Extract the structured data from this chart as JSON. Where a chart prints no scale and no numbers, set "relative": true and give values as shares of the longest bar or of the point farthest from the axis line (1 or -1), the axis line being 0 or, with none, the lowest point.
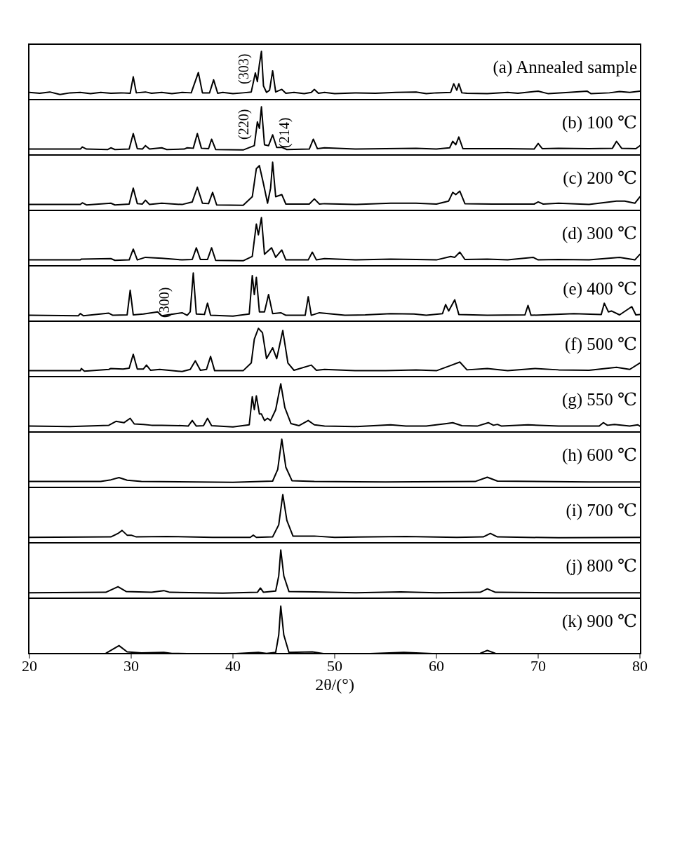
{
  "chart_data": [
    {
      "type": "line",
      "title": "(a) Annealed sample",
      "relative": true,
      "color": "#000000",
      "xlim": [
        20,
        80
      ],
      "tick_labels": false,
      "annotations": [
        {
          "text": "(303)",
          "x": 42.8,
          "y": 1
        }
      ],
      "x": [
        20,
        21,
        22,
        23,
        24,
        25,
        26,
        27,
        28,
        29,
        29.9,
        30.2,
        30.5,
        31.4,
        32,
        33,
        34,
        35,
        35.9,
        36.6,
        37,
        37.7,
        38.1,
        38.5,
        39,
        40,
        41,
        41.8,
        42.2,
        42.4,
        42.6,
        42.8,
        43,
        43.3,
        43.6,
        43.9,
        44.2,
        44.8,
        45.2,
        46,
        47,
        47.7,
        48,
        48.4,
        49,
        50,
        52,
        54,
        56,
        58,
        59,
        60,
        61.4,
        61.7,
        62,
        62.2,
        62.5,
        63,
        65,
        67,
        68,
        70,
        71,
        73,
        74.8,
        75.2,
        77,
        78,
        79,
        80
      ],
      "values": [
        0.05,
        0.03,
        0.06,
        0,
        0.04,
        0.05,
        0.02,
        0.05,
        0.03,
        0.04,
        0.03,
        0.41,
        0.04,
        0.06,
        0.03,
        0.05,
        0.02,
        0.05,
        0.04,
        0.51,
        0.04,
        0.04,
        0.34,
        0.03,
        0.05,
        0.02,
        0.04,
        0.06,
        0.5,
        0.3,
        0.7,
        1,
        0.2,
        0.05,
        0.1,
        0.55,
        0.06,
        0.12,
        0.03,
        0.05,
        0.02,
        0.05,
        0.12,
        0.03,
        0.05,
        0.02,
        0.04,
        0.03,
        0.05,
        0.06,
        0.02,
        0.04,
        0.05,
        0.25,
        0.1,
        0.25,
        0.04,
        0.03,
        0.02,
        0.05,
        0.03,
        0.08,
        0.02,
        0.05,
        0.08,
        0.02,
        0.04,
        0.07,
        0.05,
        0.08
      ]
    },
    {
      "type": "line",
      "title": "(b) 100 ℃",
      "relative": true,
      "color": "#000000",
      "xlim": [
        20,
        80
      ],
      "tick_labels": false,
      "annotations": [
        {
          "text": "(220)",
          "x": 42.8,
          "y": 1
        },
        {
          "text": "(214)",
          "x": 43.9,
          "y": 0.35
        }
      ],
      "x": [
        20,
        25,
        25.2,
        25.6,
        27.7,
        28,
        28.4,
        29.8,
        30.2,
        30.6,
        31.1,
        31.4,
        31.8,
        33,
        33.5,
        35.2,
        35.5,
        36.1,
        36.5,
        36.9,
        37.6,
        37.9,
        38.3,
        41,
        42.1,
        42.4,
        42.6,
        42.8,
        43.1,
        43.5,
        43.9,
        44.3,
        44.8,
        45.3,
        47.5,
        47.9,
        48.3,
        49,
        52,
        55,
        58,
        60,
        61.3,
        61.6,
        61.9,
        62.2,
        62.6,
        67,
        69.6,
        70,
        70.4,
        72,
        75,
        77.3,
        77.7,
        78.2,
        79.6,
        80
      ],
      "values": [
        0.02,
        0.02,
        0.07,
        0.02,
        0.01,
        0.05,
        0.01,
        0.02,
        0.38,
        0.03,
        0.02,
        0.1,
        0.02,
        0.05,
        0.01,
        0.02,
        0.05,
        0.04,
        0.38,
        0.04,
        0.03,
        0.25,
        0.01,
        0,
        0.1,
        0.65,
        0.5,
        1,
        0.12,
        0.1,
        0.35,
        0.06,
        0.06,
        0.01,
        0.02,
        0.25,
        0.03,
        0.05,
        0.02,
        0.03,
        0.04,
        0.02,
        0.05,
        0.2,
        0.12,
        0.3,
        0.03,
        0.03,
        0.02,
        0.15,
        0.03,
        0.04,
        0.03,
        0.04,
        0.2,
        0.04,
        0.03,
        0.1
      ]
    },
    {
      "type": "line",
      "title": "(c) 200 ℃",
      "relative": true,
      "color": "#000000",
      "xlim": [
        20,
        80
      ],
      "tick_labels": false,
      "x": [
        20,
        25,
        25.2,
        25.6,
        28,
        28.4,
        29.8,
        30.2,
        30.6,
        31.1,
        31.4,
        31.8,
        33,
        35,
        36,
        36.5,
        37,
        37.6,
        38,
        38.4,
        41,
        41.9,
        42.3,
        42.6,
        43,
        43.4,
        43.7,
        43.9,
        44.2,
        44.8,
        45.2,
        47.5,
        48,
        48.5,
        49,
        52,
        55.5,
        58,
        60,
        61.2,
        61.6,
        61.9,
        62.3,
        62.8,
        65.5,
        69.6,
        70,
        70.5,
        72,
        75,
        77.7,
        78.5,
        79.5,
        80
      ],
      "values": [
        0.02,
        0.02,
        0.06,
        0.01,
        0.05,
        0.01,
        0.03,
        0.4,
        0.04,
        0.03,
        0.12,
        0.02,
        0.05,
        0.02,
        0.08,
        0.42,
        0.05,
        0.04,
        0.3,
        0.01,
        0,
        0.2,
        0.85,
        0.92,
        0.5,
        0.05,
        0.4,
        1,
        0.2,
        0.25,
        0.03,
        0.03,
        0.15,
        0.03,
        0.04,
        0.02,
        0.05,
        0.05,
        0.03,
        0.1,
        0.3,
        0.25,
        0.33,
        0.04,
        0.03,
        0.03,
        0.08,
        0.03,
        0.05,
        0.02,
        0.1,
        0.1,
        0.05,
        0.2
      ]
    },
    {
      "type": "line",
      "title": "(d) 300 ℃",
      "relative": true,
      "color": "#000000",
      "xlim": [
        20,
        80
      ],
      "tick_labels": false,
      "x": [
        20,
        25,
        25.1,
        28,
        28.4,
        29.8,
        30.2,
        30.6,
        31.4,
        33,
        35,
        36,
        36.4,
        36.8,
        37.5,
        37.9,
        38.3,
        41,
        41.9,
        42.3,
        42.5,
        42.8,
        43.1,
        43.8,
        44.2,
        44.8,
        45.2,
        47.4,
        47.8,
        48.2,
        49,
        52,
        55.5,
        58,
        60,
        61.4,
        61.8,
        62.3,
        62.8,
        65,
        67,
        69.5,
        70,
        72,
        75,
        78,
        79.5,
        80
      ],
      "values": [
        0.02,
        0.02,
        0.04,
        0.05,
        0.01,
        0.02,
        0.27,
        0.02,
        0.08,
        0.06,
        0.02,
        0.03,
        0.3,
        0.03,
        0.03,
        0.3,
        0.01,
        0,
        0.1,
        0.85,
        0.6,
        1,
        0.15,
        0.3,
        0.08,
        0.25,
        0.02,
        0.02,
        0.2,
        0.02,
        0.05,
        0.02,
        0.04,
        0.03,
        0.02,
        0.1,
        0.08,
        0.2,
        0.03,
        0.04,
        0.02,
        0.08,
        0.02,
        0.03,
        0.02,
        0.08,
        0.02,
        0.15
      ]
    },
    {
      "type": "line",
      "title": "(e) 400 ℃",
      "relative": true,
      "color": "#000000",
      "xlim": [
        20,
        80
      ],
      "tick_labels": false,
      "annotations": [
        {
          "text": "(300)",
          "x": 35,
          "y": 0.08
        }
      ],
      "x": [
        20,
        24.8,
        25,
        25.3,
        27.8,
        28.2,
        29.6,
        29.9,
        30.2,
        31.2,
        32.6,
        33,
        35,
        35.5,
        35.8,
        36.1,
        36.4,
        37.2,
        37.5,
        37.8,
        40,
        41.6,
        41.9,
        42.1,
        42.3,
        42.6,
        43.1,
        43.5,
        43.9,
        44.7,
        45.2,
        47.1,
        47.4,
        47.7,
        48.5,
        51,
        53,
        55.5,
        57.8,
        59,
        60.6,
        60.9,
        61.2,
        61.8,
        62.2,
        65,
        68.7,
        69,
        69.3,
        73.5,
        76.2,
        76.5,
        76.9,
        77.2,
        78,
        79.2,
        79.6,
        80
      ],
      "values": [
        0.02,
        0.01,
        0.06,
        0.01,
        0.07,
        0.02,
        0.03,
        0.6,
        0.03,
        0.05,
        0.1,
        0.01,
        0.08,
        0.02,
        0.1,
        1,
        0.05,
        0.04,
        0.3,
        0.02,
        0,
        0.05,
        0.94,
        0.5,
        0.9,
        0.1,
        0.1,
        0.5,
        0.06,
        0.08,
        0.02,
        0.02,
        0.45,
        0.02,
        0.08,
        0.02,
        0.03,
        0.06,
        0.05,
        0.02,
        0.06,
        0.27,
        0.12,
        0.38,
        0.04,
        0.02,
        0.03,
        0.25,
        0.02,
        0.06,
        0.04,
        0.3,
        0.1,
        0.12,
        0.03,
        0.22,
        0.03,
        0.04
      ]
    },
    {
      "type": "line",
      "title": "(f) 500 ℃",
      "relative": true,
      "color": "#000000",
      "xlim": [
        20,
        80
      ],
      "tick_labels": false,
      "x": [
        20,
        25,
        25.1,
        25.4,
        27.8,
        28,
        29.2,
        29.8,
        30.2,
        30.6,
        31.2,
        31.5,
        31.9,
        32.8,
        35,
        35.8,
        36.3,
        36.8,
        37.4,
        37.8,
        38.2,
        41,
        41.8,
        42.1,
        42.5,
        42.9,
        43.3,
        43.9,
        44.3,
        44.9,
        45.4,
        46,
        47.7,
        48.2,
        49,
        52,
        55,
        58,
        60,
        61.5,
        62.3,
        63,
        65,
        67,
        69.7,
        72,
        75,
        77.7,
        79,
        80
      ],
      "values": [
        0.02,
        0.02,
        0.07,
        0.01,
        0.05,
        0.07,
        0.06,
        0.08,
        0.4,
        0.06,
        0.06,
        0.15,
        0.03,
        0.05,
        0,
        0.05,
        0.25,
        0.03,
        0.05,
        0.35,
        0.02,
        0.02,
        0.2,
        0.75,
        1,
        0.9,
        0.3,
        0.55,
        0.3,
        0.95,
        0.2,
        0.03,
        0.15,
        0.03,
        0.05,
        0.02,
        0.02,
        0.04,
        0.02,
        0.15,
        0.22,
        0.04,
        0.07,
        0.02,
        0.07,
        0.04,
        0.03,
        0.1,
        0.05,
        0.2
      ]
    },
    {
      "type": "line",
      "title": "(g) 550 ℃",
      "relative": true,
      "color": "#000000",
      "xlim": [
        20,
        80
      ],
      "tick_labels": false,
      "x": [
        20,
        24,
        27.8,
        28.5,
        29.3,
        29.9,
        30.3,
        31.2,
        32,
        33,
        35,
        35.6,
        36,
        36.4,
        37.1,
        37.5,
        37.9,
        40,
        41.6,
        41.9,
        42.1,
        42.3,
        42.6,
        42.8,
        43.1,
        43.4,
        43.7,
        44.2,
        44.7,
        45.1,
        45.7,
        46.5,
        47.4,
        48,
        49,
        52,
        55.5,
        57,
        59,
        61,
        61.6,
        62.5,
        64,
        65.1,
        65.6,
        66,
        66.4,
        69,
        72,
        76,
        76.4,
        76.8,
        77.5,
        79,
        79.8,
        80
      ],
      "values": [
        0.02,
        0.01,
        0.04,
        0.13,
        0.1,
        0.2,
        0.07,
        0.06,
        0.04,
        0.04,
        0.03,
        0.02,
        0.15,
        0.02,
        0.03,
        0.2,
        0.03,
        0,
        0.05,
        0.7,
        0.4,
        0.72,
        0.3,
        0.3,
        0.15,
        0.2,
        0.15,
        0.4,
        1,
        0.45,
        0.08,
        0.03,
        0.15,
        0.05,
        0.02,
        0.01,
        0.05,
        0.02,
        0.02,
        0.08,
        0.1,
        0.03,
        0.02,
        0.1,
        0.04,
        0.06,
        0.02,
        0.05,
        0.02,
        0.02,
        0.1,
        0.04,
        0.06,
        0.02,
        0.05,
        0.02
      ]
    },
    {
      "type": "line",
      "title": "(h) 600 ℃",
      "relative": true,
      "color": "#000000",
      "xlim": [
        20,
        80
      ],
      "tick_labels": false,
      "x": [
        20,
        27,
        28,
        28.8,
        29.6,
        31,
        40,
        43.9,
        44.4,
        44.8,
        45.2,
        45.8,
        48,
        55,
        63.8,
        65,
        66,
        75,
        80
      ],
      "values": [
        0.02,
        0.02,
        0.06,
        0.11,
        0.05,
        0.02,
        0,
        0.03,
        0.3,
        1,
        0.35,
        0.04,
        0.02,
        0.01,
        0.02,
        0.12,
        0.03,
        0.01,
        0.01
      ]
    },
    {
      "type": "line",
      "title": "(i) 700 ℃",
      "relative": true,
      "color": "#000000",
      "xlim": [
        20,
        80
      ],
      "tick_labels": false,
      "x": [
        20,
        28,
        28.7,
        29.1,
        29.6,
        30,
        30.5,
        33.5,
        38,
        41.7,
        42,
        42.3,
        43.9,
        44.5,
        44.9,
        45.3,
        45.9,
        48,
        50,
        57,
        62,
        64.6,
        65.3,
        66,
        72,
        80
      ],
      "values": [
        0.01,
        0.02,
        0.1,
        0.17,
        0.06,
        0.06,
        0.02,
        0.03,
        0.01,
        0.01,
        0.06,
        0.01,
        0.02,
        0.3,
        1,
        0.4,
        0.04,
        0.04,
        0.01,
        0.03,
        0.01,
        0.02,
        0.1,
        0.02,
        0,
        0.01
      ]
    },
    {
      "type": "line",
      "title": "(j) 800 ℃",
      "relative": true,
      "color": "#000000",
      "xlim": [
        20,
        80
      ],
      "tick_labels": false,
      "x": [
        20,
        27.5,
        28.7,
        29.5,
        32,
        33.2,
        33.8,
        39,
        42.4,
        42.7,
        43,
        44.2,
        44.5,
        44.7,
        45,
        45.5,
        48,
        52,
        56.5,
        60,
        64.3,
        65,
        65.8,
        72,
        80
      ],
      "values": [
        0.01,
        0.02,
        0.15,
        0.04,
        0.02,
        0.06,
        0.02,
        0,
        0.02,
        0.12,
        0.02,
        0.05,
        0.4,
        1,
        0.4,
        0.04,
        0.03,
        0.01,
        0.03,
        0.01,
        0.02,
        0.1,
        0.02,
        0.01,
        0.01
      ]
    },
    {
      "type": "line",
      "title": "(k) 900 ℃",
      "relative": true,
      "color": "#000000",
      "xlim": [
        20,
        80
      ],
      "xticks": [
        20,
        30,
        40,
        50,
        60,
        70,
        80
      ],
      "xlabel": "2θ/(°)",
      "tick_labels": "x",
      "x": [
        20,
        27.5,
        28.8,
        29.6,
        31,
        33.2,
        34,
        39,
        42.5,
        43.3,
        44.2,
        44.5,
        44.7,
        45,
        45.5,
        47.8,
        49,
        53,
        56.8,
        60,
        64.3,
        65,
        65.8,
        75,
        80
      ],
      "values": [
        0.01,
        0.02,
        0.18,
        0.05,
        0.03,
        0.04,
        0.02,
        0,
        0.04,
        0.02,
        0.04,
        0.4,
        1,
        0.4,
        0.04,
        0.05,
        0.01,
        0.01,
        0.04,
        0.01,
        0.02,
        0.08,
        0.02,
        0.01,
        0.01
      ]
    }
  ]
}
